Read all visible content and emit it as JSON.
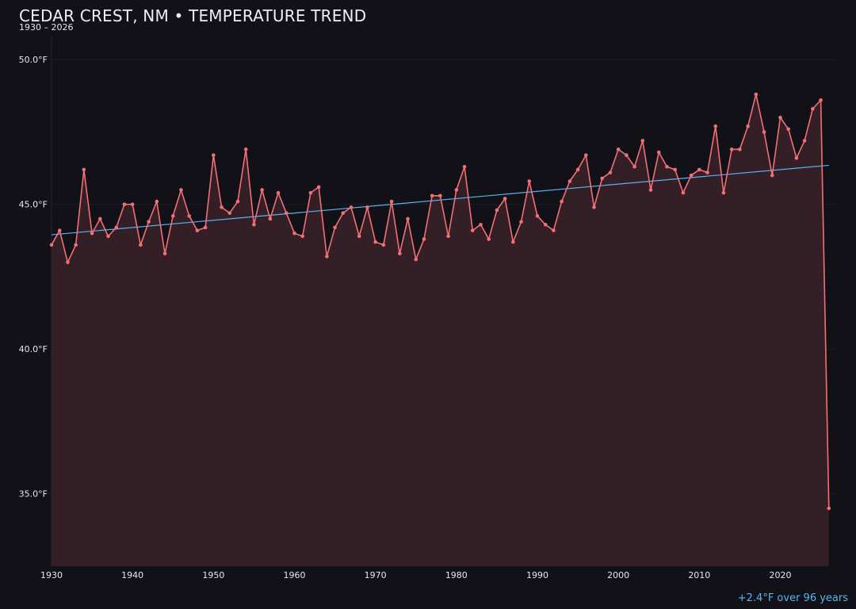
{
  "header": {
    "title": "CEDAR CREST, NM • TEMPERATURE TREND",
    "subtitle": "1930 – 2026"
  },
  "footer": {
    "trend_note": "+2.4°F over 96 years"
  },
  "colors": {
    "background": "#121118",
    "series_line": "#f07075",
    "area_fill": "#341f26",
    "trend_line": "#58b4ef",
    "grid": "#1d1c24"
  },
  "chart_data": {
    "type": "line",
    "title": "CEDAR CREST, NM • TEMPERATURE TREND",
    "subtitle": "1930 – 2026",
    "xlabel": "",
    "ylabel": "",
    "grid": true,
    "area_fill": true,
    "xlim": [
      1930,
      2027
    ],
    "ylim": [
      32.5,
      50.8
    ],
    "x_ticks": [
      1930,
      1940,
      1950,
      1960,
      1970,
      1980,
      1990,
      2000,
      2010,
      2020
    ],
    "x_tick_labels": [
      "1930",
      "1940",
      "1950",
      "1960",
      "1970",
      "1980",
      "1990",
      "2000",
      "2010",
      "2020"
    ],
    "y_ticks": [
      35,
      40,
      45,
      50
    ],
    "y_tick_labels": [
      "35.0°F",
      "40.0°F",
      "45.0°F",
      "50.0°F"
    ],
    "series": [
      {
        "x": [
          1930,
          1931,
          1932,
          1933,
          1934,
          1935,
          1936,
          1937,
          1938,
          1939,
          1940,
          1941,
          1942,
          1943,
          1944,
          1945,
          1946,
          1947,
          1948,
          1949,
          1950,
          1951,
          1952,
          1953,
          1954,
          1955,
          1956,
          1957,
          1958,
          1959,
          1960,
          1961,
          1962,
          1963,
          1964,
          1965,
          1966,
          1967,
          1968,
          1969,
          1970,
          1971,
          1972,
          1973,
          1974,
          1975,
          1976,
          1977,
          1978,
          1979,
          1980,
          1981,
          1982,
          1983,
          1984,
          1985,
          1986,
          1987,
          1988,
          1989,
          1990,
          1991,
          1992,
          1993,
          1994,
          1995,
          1996,
          1997,
          1998,
          1999,
          2000,
          2001,
          2002,
          2003,
          2004,
          2005,
          2006,
          2007,
          2008,
          2009,
          2010,
          2011,
          2012,
          2013,
          2014,
          2015,
          2016,
          2017,
          2018,
          2019,
          2020,
          2021,
          2022,
          2023,
          2024,
          2025,
          2026
        ],
        "values": [
          43.6,
          44.1,
          43.0,
          43.6,
          46.2,
          44.0,
          44.5,
          43.9,
          44.2,
          45.0,
          45.0,
          43.6,
          44.4,
          45.1,
          43.3,
          44.6,
          45.5,
          44.6,
          44.1,
          44.2,
          46.7,
          44.9,
          44.7,
          45.1,
          46.9,
          44.3,
          45.5,
          44.5,
          45.4,
          44.7,
          44.0,
          43.9,
          45.4,
          45.6,
          43.2,
          44.2,
          44.7,
          44.9,
          43.9,
          44.9,
          43.7,
          43.6,
          45.1,
          43.3,
          44.5,
          43.1,
          43.8,
          45.3,
          45.3,
          43.9,
          45.5,
          46.3,
          44.1,
          44.3,
          43.8,
          44.8,
          45.2,
          43.7,
          44.4,
          45.8,
          44.6,
          44.3,
          44.1,
          45.1,
          45.8,
          46.2,
          46.7,
          44.9,
          45.9,
          46.1,
          46.9,
          46.7,
          46.3,
          47.2,
          45.5,
          46.8,
          46.3,
          46.2,
          45.4,
          46.0,
          46.2,
          46.1,
          47.7,
          45.4,
          46.9,
          46.9,
          47.7,
          48.8,
          47.5,
          46.0,
          48.0,
          47.6,
          46.6,
          47.2,
          48.3,
          48.6,
          34.5
        ]
      },
      {
        "name": "+2.4°F over 96 years",
        "type": "trend",
        "x": [
          1930,
          2026
        ],
        "values": [
          43.95,
          46.35
        ]
      }
    ],
    "annotations": [
      "+2.4°F over 96 years"
    ]
  }
}
